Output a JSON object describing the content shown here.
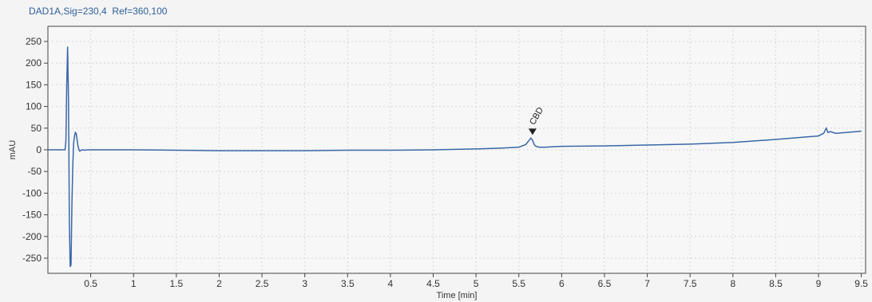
{
  "chart_data": {
    "type": "line",
    "title": "DAD1A,Sig=230,4  Ref=360,100",
    "xlabel": "Time [min]",
    "ylabel": "mAU",
    "xlim": [
      0.0,
      9.55
    ],
    "ylim": [
      -285,
      285
    ],
    "x_ticks": [
      {
        "value": 0.5,
        "label": "0.5"
      },
      {
        "value": 1,
        "label": "1"
      },
      {
        "value": 1.5,
        "label": "1.5"
      },
      {
        "value": 2,
        "label": "2"
      },
      {
        "value": 2.5,
        "label": "2.5"
      },
      {
        "value": 3,
        "label": "3"
      },
      {
        "value": 3.5,
        "label": "3.5"
      },
      {
        "value": 4,
        "label": "4"
      },
      {
        "value": 4.5,
        "label": "4.5"
      },
      {
        "value": 5,
        "label": "5"
      },
      {
        "value": 5.5,
        "label": "5.5"
      },
      {
        "value": 6,
        "label": "6"
      },
      {
        "value": 6.5,
        "label": "6.5"
      },
      {
        "value": 7,
        "label": "7"
      },
      {
        "value": 7.5,
        "label": "7.5"
      },
      {
        "value": 8,
        "label": "8"
      },
      {
        "value": 8.5,
        "label": "8.5"
      },
      {
        "value": 9,
        "label": "9"
      },
      {
        "value": 9.5,
        "label": "9.5"
      }
    ],
    "y_ticks": [
      {
        "value": 250,
        "label": "250"
      },
      {
        "value": 200,
        "label": "200"
      },
      {
        "value": 150,
        "label": "150"
      },
      {
        "value": 100,
        "label": "100"
      },
      {
        "value": 50,
        "label": "50"
      },
      {
        "value": 0,
        "label": "0"
      },
      {
        "value": -50,
        "label": "-50"
      },
      {
        "value": -100,
        "label": "-100"
      },
      {
        "value": -150,
        "label": "-150"
      },
      {
        "value": -200,
        "label": "-200"
      },
      {
        "value": -250,
        "label": "-250"
      }
    ],
    "grid": true,
    "line_color": "#3a67a8",
    "series": [
      {
        "x": [
          0.0,
          0.18,
          0.2,
          0.21,
          0.22,
          0.23,
          0.24,
          0.245,
          0.25,
          0.26,
          0.27,
          0.28,
          0.29,
          0.3,
          0.31,
          0.32,
          0.33,
          0.34,
          0.35,
          0.36,
          0.37,
          0.38,
          0.4,
          0.43,
          0.47,
          0.55,
          0.7,
          1.0,
          1.5,
          2.0,
          2.5,
          3.0,
          3.5,
          4.0,
          4.5,
          5.0,
          5.3,
          5.5,
          5.58,
          5.62,
          5.64,
          5.66,
          5.68,
          5.7,
          5.74,
          5.8,
          6.0,
          6.5,
          7.0,
          7.5,
          8.0,
          8.5,
          9.0,
          9.06,
          9.09,
          9.11,
          9.14,
          9.2,
          9.5
        ],
        "y": [
          0,
          0,
          0,
          20,
          150,
          238,
          120,
          0,
          -160,
          -270,
          -265,
          -130,
          -40,
          15,
          30,
          40,
          38,
          25,
          10,
          2,
          -3,
          -2,
          0,
          -1,
          0,
          0,
          0,
          0,
          -1,
          -2,
          -2,
          -2,
          -1,
          -1,
          0,
          2,
          4,
          6,
          12,
          22,
          27,
          22,
          12,
          8,
          6,
          6,
          8,
          9,
          11,
          13,
          17,
          24,
          32,
          38,
          50,
          40,
          42,
          38,
          43
        ]
      }
    ],
    "annotations": [
      {
        "x": 5.66,
        "y": 27,
        "label": "CBD",
        "marker": "triangle-down"
      }
    ]
  }
}
